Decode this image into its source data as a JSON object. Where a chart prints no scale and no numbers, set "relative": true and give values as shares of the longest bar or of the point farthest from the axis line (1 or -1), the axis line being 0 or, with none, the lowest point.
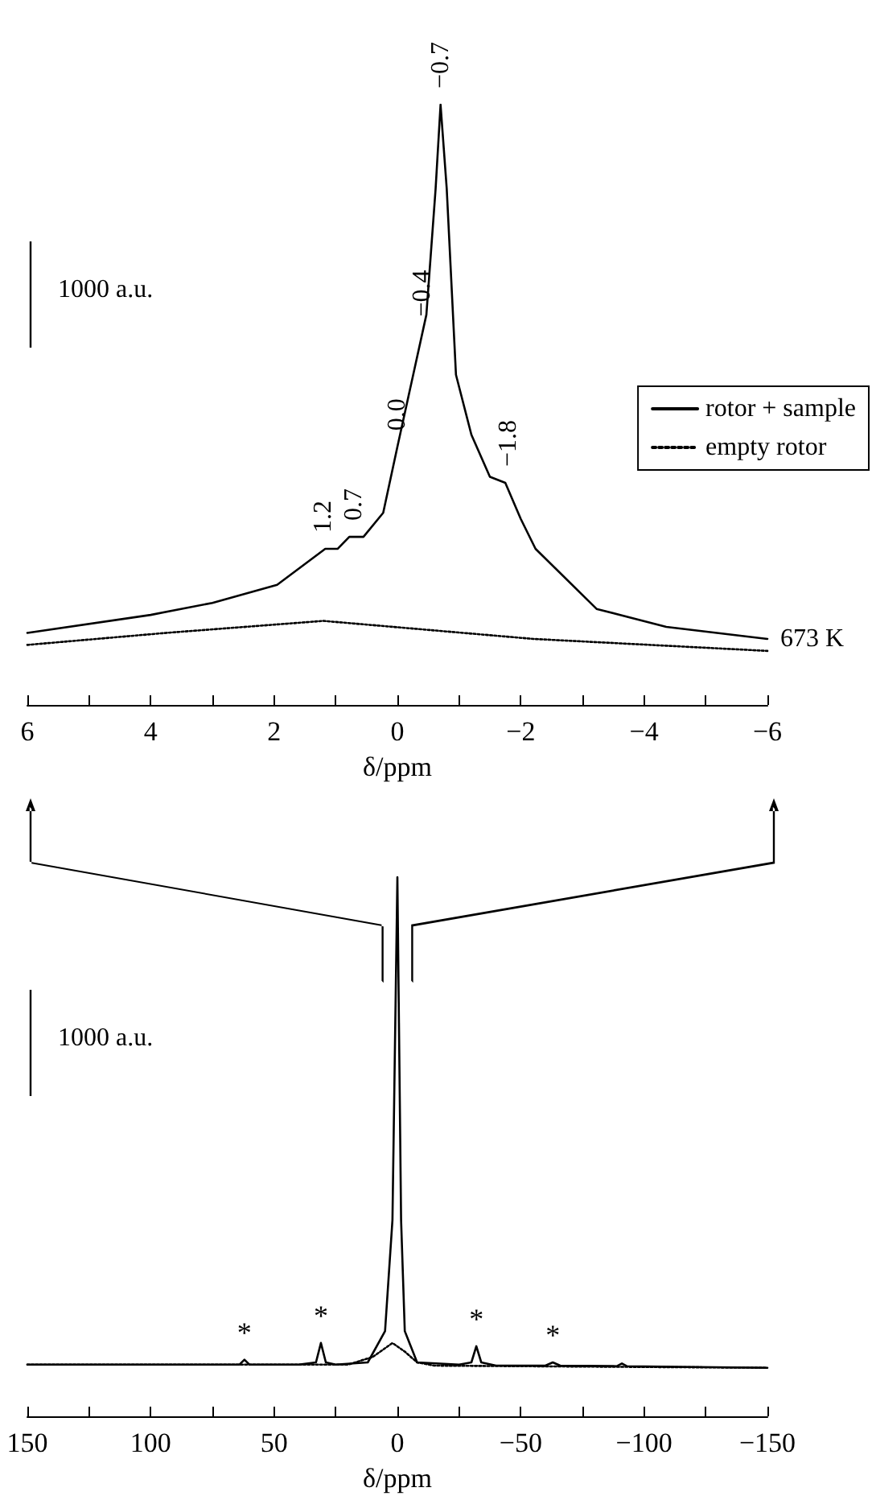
{
  "chart_data": [
    {
      "type": "line",
      "xlabel": "δ/ppm",
      "xlim": [
        6,
        -6
      ],
      "xticks": [
        6,
        {
          "value": 5,
          "label": null
        },
        4,
        {
          "value": 3,
          "label": null
        },
        2,
        {
          "value": 1,
          "label": null
        },
        0,
        {
          "value": -1,
          "label": null
        },
        -2,
        {
          "value": -3,
          "label": null
        },
        -4,
        {
          "value": -5,
          "label": null
        },
        -6
      ],
      "relative": true,
      "grid": false,
      "legend": "right",
      "marker": "none",
      "series": [
        {
          "name": "rotor + sample",
          "color": "#000000",
          "line_style": "solid",
          "x": [
            6,
            4,
            3,
            1.95,
            1.17,
            0.97,
            0.78,
            0.55,
            0.23,
            0,
            -0.47,
            -0.62,
            -0.7,
            -0.8,
            -0.95,
            -1.2,
            -1.5,
            -1.75,
            -2.0,
            -2.24,
            -3.23,
            -4.36,
            -6
          ],
          "values": [
            0.12,
            0.15,
            0.17,
            0.2,
            0.26,
            0.26,
            0.28,
            0.28,
            0.32,
            0.43,
            0.65,
            0.86,
            1,
            0.86,
            0.55,
            0.45,
            0.38,
            0.37,
            0.31,
            0.26,
            0.16,
            0.13,
            0.11
          ]
        },
        {
          "name": "empty rotor",
          "color": "#000000",
          "line_style": "dotted",
          "x": [
            6,
            3.75,
            1.2,
            -2.2,
            -6
          ],
          "values": [
            0.1,
            0.12,
            0.14,
            0.11,
            0.09
          ]
        }
      ],
      "annotations": [
        "1000 a.u.",
        "673 K",
        {
          "text": "−0.7",
          "x": -0.7,
          "y": 1
        },
        {
          "text": "−0.4",
          "x": -0.4,
          "y": 0.62
        },
        {
          "text": "0.0",
          "x": 0,
          "y": 0.43
        },
        {
          "text": "1.2",
          "x": 1.2,
          "y": 0.26
        },
        {
          "text": "0.7",
          "x": 0.7,
          "y": 0.28
        },
        {
          "text": "−1.8",
          "x": -1.8,
          "y": 0.37
        }
      ]
    },
    {
      "type": "line",
      "xlabel": "δ/ppm",
      "xlim": [
        150,
        -150
      ],
      "xticks": [
        150,
        {
          "value": 125,
          "label": null
        },
        100,
        {
          "value": 75,
          "label": null
        },
        50,
        {
          "value": 25,
          "label": null
        },
        0,
        {
          "value": -25,
          "label": null
        },
        -50,
        {
          "value": -75,
          "label": null
        },
        -100,
        {
          "value": -125,
          "label": null
        },
        -150
      ],
      "relative": true,
      "grid": false,
      "marker": "none",
      "series": [
        {
          "color": "#000000",
          "line_style": "solid",
          "x": [
            150,
            70,
            64,
            62,
            60,
            40,
            33,
            31,
            29,
            25,
            12,
            5,
            2,
            0,
            -1.5,
            -3,
            -8,
            -25,
            -30,
            -32,
            -34,
            -40,
            -60,
            -63,
            -66,
            -89,
            -91,
            -93,
            -150
          ],
          "values": [
            0.096,
            0.096,
            0.096,
            0.105,
            0.096,
            0.096,
            0.1,
            0.136,
            0.1,
            0.096,
            0.1,
            0.158,
            0.364,
            1,
            0.364,
            0.158,
            0.1,
            0.096,
            0.1,
            0.13,
            0.1,
            0.094,
            0.094,
            0.1,
            0.094,
            0.093,
            0.098,
            0.093,
            0.09
          ]
        },
        {
          "color": "#000000",
          "line_style": "dotted",
          "x": [
            150,
            20,
            10,
            2,
            -3,
            -8,
            -15,
            -150
          ],
          "values": [
            0.096,
            0.096,
            0.11,
            0.136,
            0.12,
            0.1,
            0.094,
            0.09
          ]
        }
      ],
      "annotations": [
        "1000 a.u.",
        {
          "text": "*",
          "x": 62,
          "y": 0.105
        },
        {
          "text": "*",
          "x": 31,
          "y": 0.136
        },
        {
          "text": "*",
          "x": -32,
          "y": 0.13
        },
        {
          "text": "*",
          "x": -63,
          "y": 0.1
        }
      ]
    }
  ]
}
